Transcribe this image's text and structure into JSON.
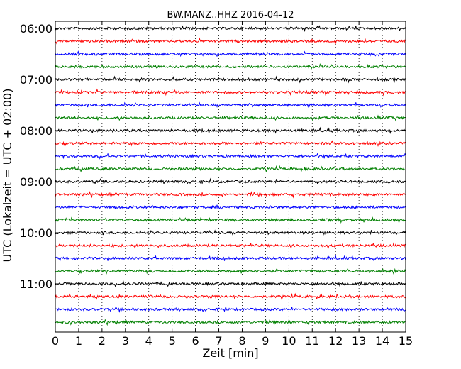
{
  "chart_data": {
    "type": "line",
    "title": "BW.MANZ..HHZ 2016-04-12",
    "xlabel": "Zeit  [min]",
    "ylabel": "UTC (Lokalzeit = UTC + 02:00)",
    "xlim": [
      0,
      15
    ],
    "x_ticks": [
      "0",
      "1",
      "2",
      "3",
      "4",
      "5",
      "6",
      "7",
      "8",
      "9",
      "10",
      "11",
      "12",
      "13",
      "14",
      "15"
    ],
    "y_tick_labels": [
      "06:00",
      "07:00",
      "08:00",
      "09:00",
      "10:00",
      "11:00"
    ],
    "grid": "vertical dotted",
    "line_colors": [
      "#000000",
      "#ff0000",
      "#0000ff",
      "#008000"
    ],
    "traces": [
      {
        "start": "06:00",
        "color": "#000000"
      },
      {
        "start": "06:15",
        "color": "#ff0000"
      },
      {
        "start": "06:30",
        "color": "#0000ff"
      },
      {
        "start": "06:45",
        "color": "#008000"
      },
      {
        "start": "07:00",
        "color": "#000000"
      },
      {
        "start": "07:15",
        "color": "#ff0000"
      },
      {
        "start": "07:30",
        "color": "#0000ff"
      },
      {
        "start": "07:45",
        "color": "#008000"
      },
      {
        "start": "08:00",
        "color": "#000000"
      },
      {
        "start": "08:15",
        "color": "#ff0000"
      },
      {
        "start": "08:30",
        "color": "#0000ff"
      },
      {
        "start": "08:45",
        "color": "#008000"
      },
      {
        "start": "09:00",
        "color": "#000000"
      },
      {
        "start": "09:15",
        "color": "#ff0000"
      },
      {
        "start": "09:30",
        "color": "#0000ff"
      },
      {
        "start": "09:45",
        "color": "#008000"
      },
      {
        "start": "10:00",
        "color": "#000000"
      },
      {
        "start": "10:15",
        "color": "#ff0000"
      },
      {
        "start": "10:30",
        "color": "#0000ff"
      },
      {
        "start": "10:45",
        "color": "#008000"
      },
      {
        "start": "11:00",
        "color": "#000000"
      },
      {
        "start": "11:15",
        "color": "#ff0000"
      },
      {
        "start": "11:30",
        "color": "#0000ff"
      },
      {
        "start": "11:45",
        "color": "#008000"
      }
    ]
  }
}
